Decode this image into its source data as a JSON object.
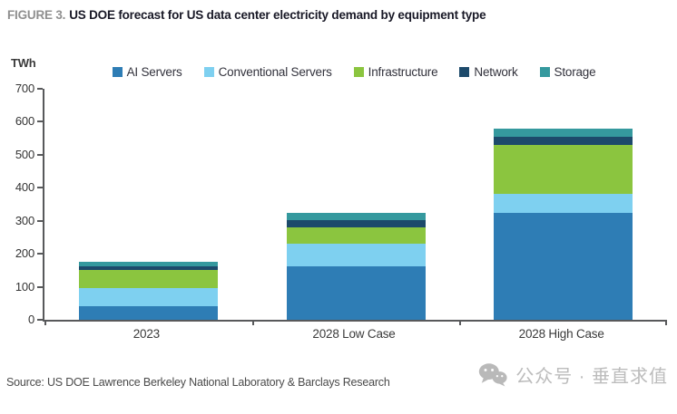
{
  "figure": {
    "label": "FIGURE 3.",
    "title": "US DOE forecast for US data center electricity demand by equipment type"
  },
  "chart_data": {
    "type": "bar",
    "stacked": true,
    "unit_label": "TWh",
    "categories": [
      "2023",
      "2028 Low Case",
      "2028 High Case"
    ],
    "series": [
      {
        "name": "AI Servers",
        "color": "#2e7db5",
        "values": [
          40,
          163,
          323
        ]
      },
      {
        "name": "Conventional Servers",
        "color": "#7ed0f0",
        "values": [
          55,
          67,
          60
        ]
      },
      {
        "name": "Infrastructure",
        "color": "#8bc53f",
        "values": [
          55,
          50,
          148
        ]
      },
      {
        "name": "Network",
        "color": "#1d4a6b",
        "values": [
          11,
          21,
          24
        ]
      },
      {
        "name": "Storage",
        "color": "#35999e",
        "values": [
          15,
          24,
          25
        ]
      }
    ],
    "totals": [
      176,
      325,
      580
    ],
    "ylim": [
      0,
      700
    ],
    "yticks": [
      0,
      100,
      200,
      300,
      400,
      500,
      600,
      700
    ],
    "grid": false,
    "legend_position": "top"
  },
  "source": {
    "text": "Source: US DOE Lawrence Berkeley National Laboratory & Barclays Research"
  },
  "watermark": {
    "icon": "wechat-icon",
    "text": "公众号 · 垂直求值"
  }
}
